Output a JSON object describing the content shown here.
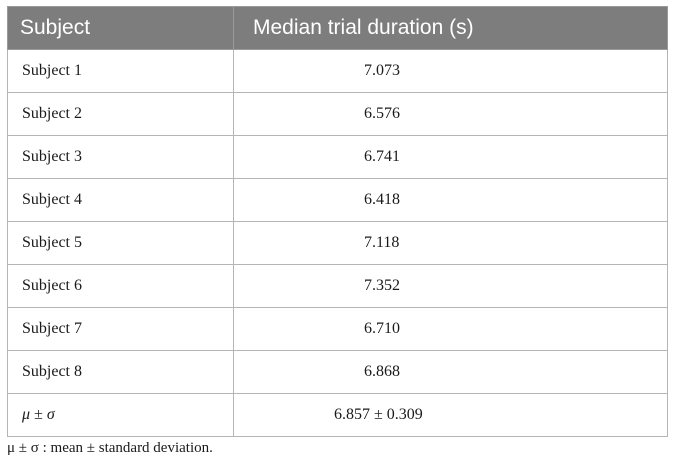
{
  "table": {
    "headers": [
      "Subject",
      "Median trial duration (s)"
    ],
    "rows": [
      {
        "subject": "Subject 1",
        "value": "7.073"
      },
      {
        "subject": "Subject 2",
        "value": "6.576"
      },
      {
        "subject": "Subject 3",
        "value": "6.741"
      },
      {
        "subject": "Subject 4",
        "value": "6.418"
      },
      {
        "subject": "Subject 5",
        "value": "7.118"
      },
      {
        "subject": "Subject 6",
        "value": "7.352"
      },
      {
        "subject": "Subject 7",
        "value": "6.710"
      },
      {
        "subject": "Subject 8",
        "value": "6.868"
      }
    ],
    "summary": {
      "label": "μ ± σ",
      "value": "6.857 ± 0.309"
    }
  },
  "footnote": "μ ± σ : mean ± standard deviation.",
  "colors": {
    "header_bg": "#7d7d7d",
    "header_text": "#ffffff",
    "grid": "#b5b5b5"
  }
}
